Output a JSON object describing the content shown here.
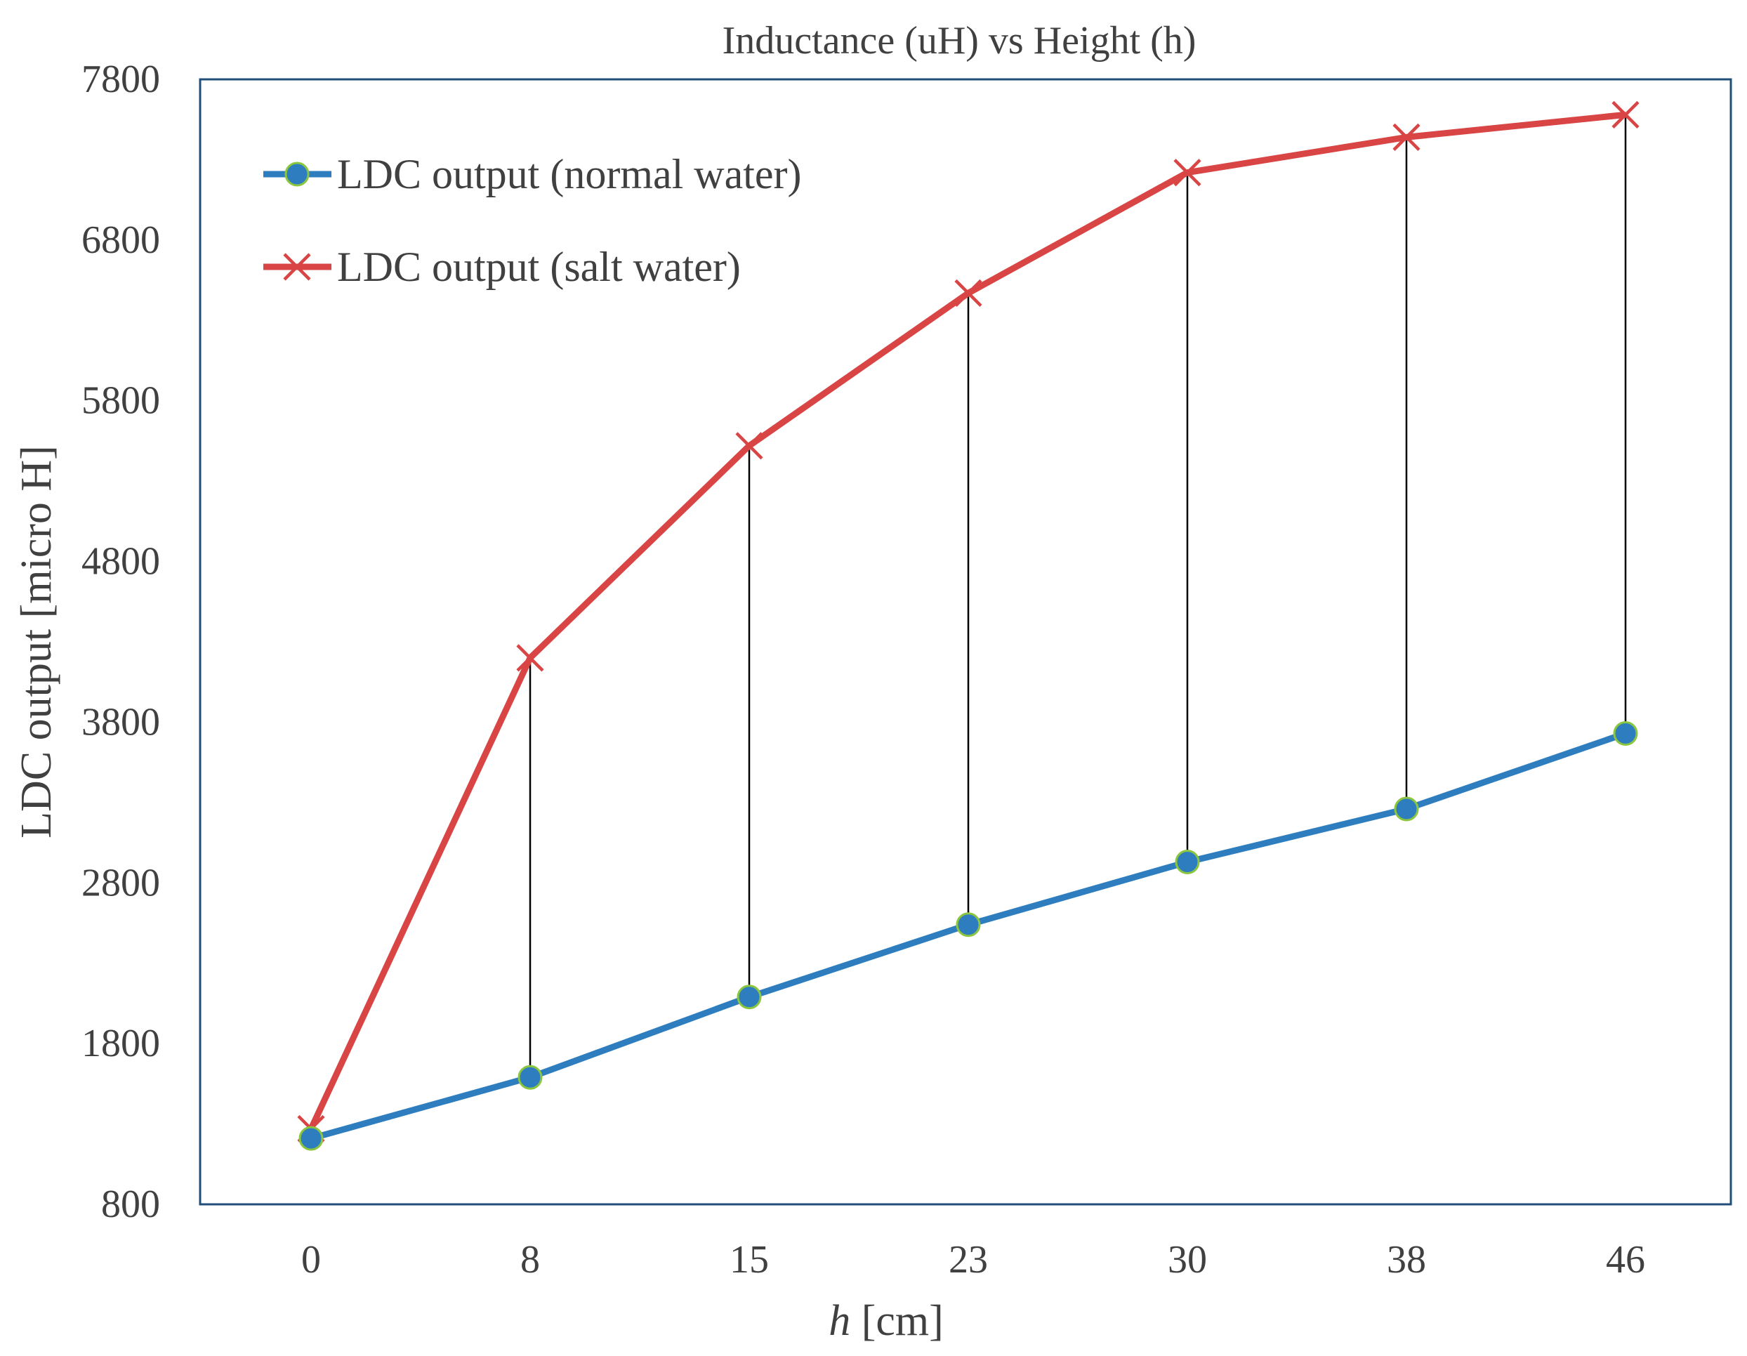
{
  "chart_data": {
    "type": "line",
    "title": "Inductance (uH) vs Height (h)",
    "xlabel_italic": "h",
    "xlabel_rest": " [cm]",
    "ylabel": "LDC output [micro H]",
    "categories": [
      "0",
      "8",
      "15",
      "23",
      "30",
      "38",
      "46"
    ],
    "ylim": [
      800,
      7800
    ],
    "yticks": [
      800,
      1800,
      2800,
      3800,
      4800,
      5800,
      6800,
      7800
    ],
    "legend_position": "top-left",
    "drop_lines": true,
    "series": [
      {
        "name": "LDC output (normal water)",
        "marker": "circle",
        "color": "#2e7ebf",
        "marker_edge": "#8cc63f",
        "values": [
          1210,
          1590,
          2090,
          2540,
          2930,
          3260,
          3730
        ]
      },
      {
        "name": "LDC output (salt water)",
        "marker": "x",
        "color": "#d94545",
        "values": [
          1270,
          4200,
          5520,
          6470,
          7220,
          7440,
          7580
        ]
      }
    ]
  }
}
